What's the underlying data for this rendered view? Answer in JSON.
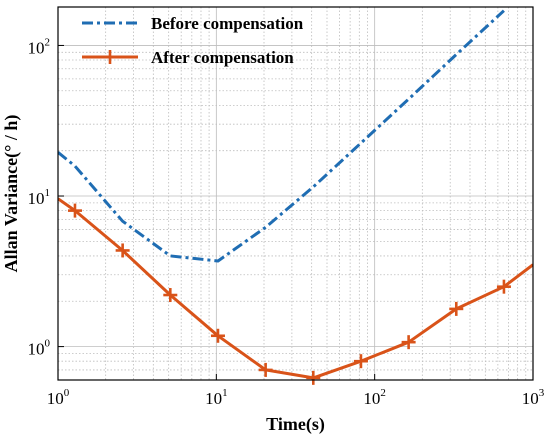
{
  "chart_data": {
    "type": "line",
    "xscale": "log",
    "yscale": "log",
    "xlim": [
      1,
      1000
    ],
    "ylim": [
      0.6,
      180
    ],
    "xlabel": "Time(s)",
    "ylabel": "Allan Variance(° / h)",
    "grid": true,
    "legend_position": "top-left",
    "x_ticks": [
      {
        "value": 1,
        "base": "10",
        "exp": "0"
      },
      {
        "value": 10,
        "base": "10",
        "exp": "1"
      },
      {
        "value": 100,
        "base": "10",
        "exp": "2"
      },
      {
        "value": 1000,
        "base": "10",
        "exp": "3"
      }
    ],
    "y_ticks": [
      {
        "value": 1,
        "base": "10",
        "exp": "0"
      },
      {
        "value": 10,
        "base": "10",
        "exp": "1"
      },
      {
        "value": 100,
        "base": "10",
        "exp": "2"
      }
    ],
    "series": [
      {
        "name": "Before compensation",
        "color": "#1f6db3",
        "style": "dashdot",
        "marker": "none",
        "x": [
          1,
          1.28,
          2.56,
          5.12,
          10.24,
          20.48,
          40.96,
          81.92,
          163.84,
          327.68,
          655.36
        ],
        "y": [
          19.5,
          15.8,
          6.8,
          4.0,
          3.7,
          6.2,
          11.5,
          22.5,
          44,
          87,
          170
        ]
      },
      {
        "name": "After compensation",
        "color": "#d95319",
        "style": "solid",
        "marker": "plus",
        "x": [
          1,
          1.28,
          2.56,
          5.12,
          10.24,
          20.48,
          40.96,
          81.92,
          163.84,
          327.68,
          655.36,
          1000
        ],
        "y": [
          9.6,
          8.0,
          4.35,
          2.2,
          1.18,
          0.7,
          0.62,
          0.8,
          1.07,
          1.78,
          2.5,
          3.5
        ],
        "marked": [
          false,
          true,
          true,
          true,
          true,
          true,
          true,
          true,
          true,
          true,
          true,
          false
        ]
      }
    ]
  }
}
